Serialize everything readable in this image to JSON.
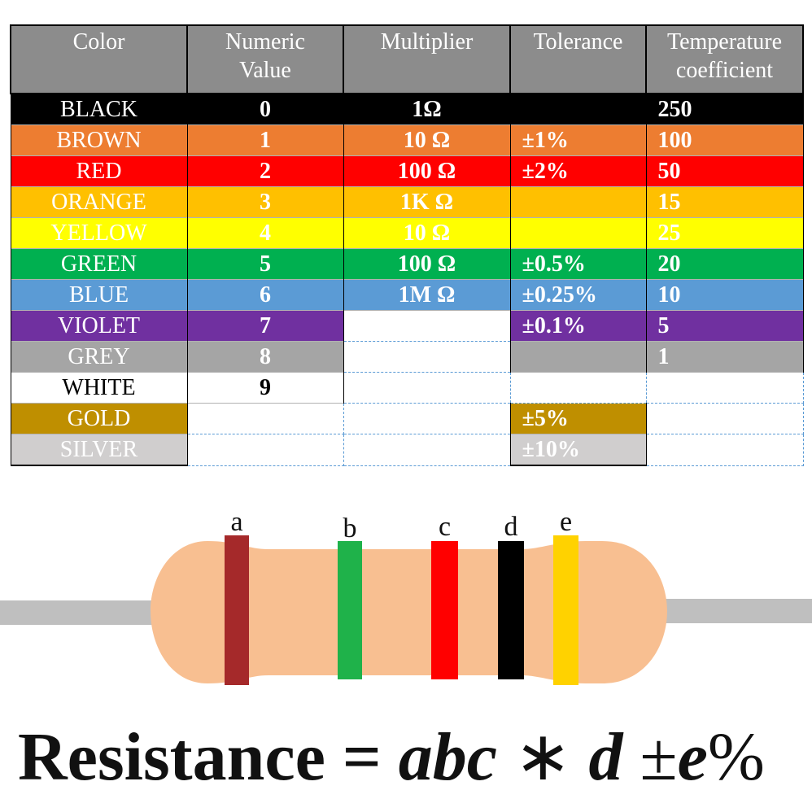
{
  "table": {
    "headers": {
      "color": "Color",
      "numeric_1": "Numeric",
      "numeric_2": "Value",
      "multiplier": "Multiplier",
      "tolerance": "Tolerance",
      "temp_1": "Temperature",
      "temp_2": "coefficient"
    },
    "rows": [
      {
        "name": "BLACK",
        "value": "0",
        "multiplier": "1Ω",
        "tolerance": "",
        "temp": "250",
        "bg": "#000000",
        "fg": "#ffffff"
      },
      {
        "name": "BROWN",
        "value": "1",
        "multiplier": "10 Ω",
        "tolerance": "±1%",
        "temp": "100",
        "bg": "#ed7d31",
        "fg": "#ffffff"
      },
      {
        "name": "RED",
        "value": "2",
        "multiplier": "100 Ω",
        "tolerance": "±2%",
        "temp": "50",
        "bg": "#ff0000",
        "fg": "#ffffff"
      },
      {
        "name": "ORANGE",
        "value": "3",
        "multiplier": "1K Ω",
        "tolerance": "",
        "temp": "15",
        "bg": "#ffc000",
        "fg": "#ffffff"
      },
      {
        "name": "YELLOW",
        "value": "4",
        "multiplier": "10 Ω",
        "tolerance": "",
        "temp": "25",
        "bg": "#ffff00",
        "fg": "#ffffff"
      },
      {
        "name": "GREEN",
        "value": "5",
        "multiplier": "100 Ω",
        "tolerance": "±0.5%",
        "temp": "20",
        "bg": "#00b050",
        "fg": "#ffffff"
      },
      {
        "name": "BLUE",
        "value": "6",
        "multiplier": "1M Ω",
        "tolerance": "±0.25%",
        "temp": "10",
        "bg": "#5b9bd5",
        "fg": "#ffffff"
      },
      {
        "name": "VIOLET",
        "value": "7",
        "multiplier": "",
        "tolerance": "±0.1%",
        "temp": "5",
        "bg": "#7030a0",
        "fg": "#ffffff"
      },
      {
        "name": "GREY",
        "value": "8",
        "multiplier": "",
        "tolerance": "",
        "temp": "1",
        "bg": "#a5a5a5",
        "fg": "#ffffff"
      },
      {
        "name": "WHITE",
        "value": "9",
        "multiplier": "",
        "tolerance": "",
        "temp": "",
        "bg": "#ffffff",
        "fg": "#000000"
      },
      {
        "name": "GOLD",
        "value": "",
        "multiplier": "",
        "tolerance": "±5%",
        "temp": "",
        "bg": "#bf8f00",
        "fg": "#ffffff"
      },
      {
        "name": "SILVER",
        "value": "",
        "multiplier": "",
        "tolerance": "±10%",
        "temp": "",
        "bg": "#d0cece",
        "fg": "#ffffff"
      }
    ]
  },
  "resistor": {
    "body_color": "#f8bf91",
    "lead_color": "#bfbfbf",
    "bands": [
      {
        "label": "a",
        "color": "#a5292a"
      },
      {
        "label": "b",
        "color": "#1fb24a"
      },
      {
        "label": "c",
        "color": "#ff0000"
      },
      {
        "label": "d",
        "color": "#000000"
      },
      {
        "label": "e",
        "color": "#ffd200"
      }
    ]
  },
  "formula": {
    "label": "Resistance",
    "equals": "=",
    "digits": "abc",
    "times": "∗",
    "multiplier": "d",
    "plus_minus": "±",
    "tolerance": "e",
    "percent": "%"
  }
}
